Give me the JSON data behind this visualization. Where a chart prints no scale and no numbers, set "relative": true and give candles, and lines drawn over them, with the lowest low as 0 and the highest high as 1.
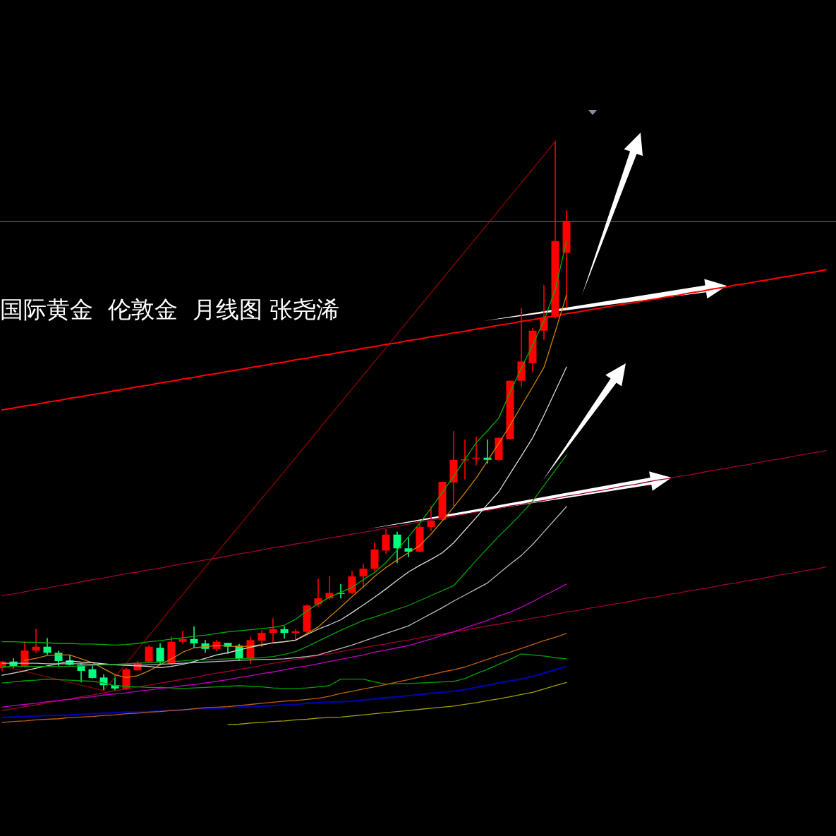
{
  "chart_data": {
    "type": "candlestick",
    "relative": true,
    "title": "国际黄金  伦敦金  月线图 张尧浠",
    "categories": [
      null,
      null,
      null,
      null,
      null,
      null,
      null,
      null,
      null,
      null,
      null,
      null,
      null,
      null,
      null,
      null,
      null,
      null,
      null,
      null,
      null,
      null,
      null,
      null,
      null,
      null,
      null,
      null,
      null,
      null,
      null,
      null,
      null,
      null,
      null,
      null,
      null,
      null,
      null,
      null,
      null,
      null,
      null,
      null,
      null,
      null,
      null,
      null,
      null,
      null,
      null,
      null,
      null,
      null,
      null,
      null,
      null,
      null,
      null,
      null,
      null,
      null,
      null,
      null,
      null,
      null,
      null,
      null,
      null,
      null,
      null,
      null,
      null,
      null
    ],
    "ohlc": [
      [
        0.041,
        0.054,
        0.035,
        0.053
      ],
      [
        0.053,
        0.059,
        0.041,
        0.045
      ],
      [
        0.045,
        0.09,
        0.042,
        0.073
      ],
      [
        0.073,
        0.113,
        0.069,
        0.08
      ],
      [
        0.08,
        0.096,
        0.065,
        0.069
      ],
      [
        0.069,
        0.073,
        0.044,
        0.054
      ],
      [
        0.055,
        0.065,
        0.046,
        0.047
      ],
      [
        0.047,
        0.05,
        0.015,
        0.036
      ],
      [
        0.039,
        0.046,
        0.022,
        0.023
      ],
      [
        0.024,
        0.03,
        0.0,
        0.01
      ],
      [
        0.01,
        0.028,
        0.0,
        0.004
      ],
      [
        0.003,
        0.041,
        0.001,
        0.039
      ],
      [
        0.037,
        0.054,
        0.036,
        0.051
      ],
      [
        0.053,
        0.083,
        0.05,
        0.08
      ],
      [
        0.078,
        0.086,
        0.047,
        0.053
      ],
      [
        0.049,
        0.099,
        0.046,
        0.089
      ],
      [
        0.089,
        0.109,
        0.085,
        0.094
      ],
      [
        0.094,
        0.117,
        0.078,
        0.086
      ],
      [
        0.086,
        0.092,
        0.069,
        0.076
      ],
      [
        0.076,
        0.092,
        0.072,
        0.089
      ],
      [
        0.087,
        0.087,
        0.067,
        0.08
      ],
      [
        0.082,
        0.085,
        0.055,
        0.058
      ],
      [
        0.058,
        0.098,
        0.049,
        0.092
      ],
      [
        0.091,
        0.11,
        0.08,
        0.105
      ],
      [
        0.105,
        0.132,
        0.089,
        0.112
      ],
      [
        0.112,
        0.117,
        0.095,
        0.105
      ],
      [
        0.105,
        0.112,
        0.092,
        0.108
      ],
      [
        0.107,
        0.157,
        0.105,
        0.155
      ],
      [
        0.157,
        0.204,
        0.153,
        0.168
      ],
      [
        0.168,
        0.209,
        0.166,
        0.178
      ],
      [
        0.178,
        0.194,
        0.168,
        0.177
      ],
      [
        0.178,
        0.218,
        0.176,
        0.208
      ],
      [
        0.208,
        0.231,
        0.187,
        0.222
      ],
      [
        0.222,
        0.27,
        0.217,
        0.257
      ],
      [
        0.255,
        0.294,
        0.249,
        0.284
      ],
      [
        0.284,
        0.289,
        0.232,
        0.259
      ],
      [
        0.259,
        0.279,
        0.243,
        0.253
      ],
      [
        0.253,
        0.303,
        0.252,
        0.298
      ],
      [
        0.298,
        0.336,
        0.29,
        0.309
      ],
      [
        0.311,
        0.38,
        0.309,
        0.38
      ],
      [
        0.379,
        0.472,
        0.336,
        0.42
      ],
      [
        0.42,
        0.457,
        0.384,
        0.421
      ],
      [
        0.422,
        0.462,
        0.41,
        0.424
      ],
      [
        0.424,
        0.457,
        0.413,
        0.42
      ],
      [
        0.42,
        0.461,
        0.418,
        0.46
      ],
      [
        0.458,
        0.564,
        0.457,
        0.564
      ],
      [
        0.564,
        0.696,
        0.553,
        0.599
      ],
      [
        0.596,
        0.66,
        0.58,
        0.655
      ],
      [
        0.655,
        0.738,
        0.638,
        0.679
      ],
      [
        0.68,
        1.0,
        0.677,
        0.818
      ],
      [
        0.797,
        0.874,
        0.696,
        0.855
      ],
      null,
      null,
      null,
      null,
      null,
      null,
      null,
      null,
      null,
      null,
      null,
      null,
      null,
      null,
      null,
      null,
      null,
      null,
      null,
      null,
      null,
      null,
      null
    ],
    "colors": [
      "#ff0000",
      "#00ff80",
      "#ff0000",
      "#ff0000",
      "#00ff80",
      "#00ff80",
      "#00ff80",
      "#00ff80",
      "#00ff80",
      "#00ff80",
      "#00ff80",
      "#ff0000",
      "#ff0000",
      "#ff0000",
      "#00ff80",
      "#ff0000",
      "#ff0000",
      "#00ff80",
      "#00ff80",
      "#ff0000",
      "#00ff80",
      "#00ff80",
      "#ff0000",
      "#ff0000",
      "#ff0000",
      "#00ff80",
      "#ff0000",
      "#ff0000",
      "#ff0000",
      "#ff0000",
      "#00ff80",
      "#ff0000",
      "#ff0000",
      "#ff0000",
      "#ff0000",
      "#00ff80",
      "#00ff80",
      "#ff0000",
      "#ff0000",
      "#ff0000",
      "#ff0000",
      "#ff0000",
      "#ff0000",
      "#00ff80",
      "#ff0000",
      "#ff0000",
      "#ff0000",
      "#ff0000",
      "#ff0000",
      "#ff0000",
      "#ff0000",
      null,
      null,
      null,
      null,
      null,
      null,
      null,
      null,
      null,
      null,
      null,
      null,
      null,
      null,
      null,
      null,
      null,
      null,
      null,
      null,
      null,
      null,
      null
    ],
    "series": [
      {
        "type": "line",
        "color": "#8b0000",
        "values": [
          0.045,
          0.04,
          0.035,
          0.03,
          0.025,
          0.02,
          0.015,
          0.01,
          0.005,
          0.0,
          0.025,
          0.05,
          0.075,
          0.1,
          0.125,
          0.15,
          0.175,
          0.2,
          0.225,
          0.25,
          0.275,
          0.3,
          0.325,
          0.35,
          0.374,
          0.399,
          0.424,
          0.449,
          0.474,
          0.499,
          0.524,
          0.549,
          0.574,
          0.599,
          0.624,
          0.649,
          0.674,
          0.699,
          0.724,
          0.749,
          0.774,
          0.799,
          0.824,
          0.849,
          0.874,
          0.899,
          0.924,
          0.949,
          0.974,
          1.0,
          null,
          null,
          null,
          null,
          null,
          null,
          null,
          null,
          null,
          null,
          null,
          null,
          null,
          null,
          null,
          null,
          null,
          null,
          null,
          null,
          null,
          null,
          null,
          null
        ]
      },
      {
        "type": "line",
        "color": "#ff0000",
        "values": [
          0.511,
          0.514,
          0.518,
          0.521,
          0.525,
          0.528,
          0.532,
          0.535,
          0.539,
          0.542,
          0.546,
          0.549,
          0.553,
          0.556,
          0.56,
          0.563,
          0.567,
          0.57,
          0.574,
          0.577,
          0.581,
          0.584,
          0.588,
          0.591,
          0.595,
          0.598,
          0.602,
          0.605,
          0.609,
          0.612,
          0.616,
          0.619,
          0.623,
          0.626,
          0.63,
          0.633,
          0.637,
          0.64,
          0.644,
          0.647,
          0.651,
          0.654,
          0.658,
          0.661,
          0.665,
          0.668,
          0.672,
          0.675,
          0.679,
          0.682,
          0.686,
          0.689,
          0.693,
          0.696,
          0.7,
          0.703,
          0.706,
          0.71,
          0.713,
          0.717,
          0.72,
          0.724,
          0.727,
          0.731,
          0.734,
          0.738,
          0.741,
          0.745,
          0.748,
          0.752,
          0.755,
          0.759,
          0.762,
          0.766
        ]
      },
      {
        "type": "line",
        "color": "#a00030",
        "values": [
          0.173,
          0.176,
          0.18,
          0.184,
          0.187,
          0.191,
          0.194,
          0.198,
          0.202,
          0.205,
          0.209,
          0.213,
          0.216,
          0.22,
          0.223,
          0.227,
          0.231,
          0.234,
          0.238,
          0.241,
          0.245,
          0.249,
          0.252,
          0.256,
          0.26,
          0.263,
          0.267,
          0.27,
          0.274,
          0.278,
          0.281,
          0.285,
          0.288,
          0.292,
          0.296,
          0.299,
          0.303,
          0.307,
          0.31,
          0.314,
          0.317,
          0.321,
          0.325,
          0.328,
          0.332,
          0.336,
          0.339,
          0.343,
          0.346,
          0.35,
          0.354,
          0.357,
          0.361,
          0.364,
          0.368,
          0.372,
          0.375,
          0.379,
          0.383,
          0.386,
          0.39,
          0.393,
          0.397,
          0.401,
          0.404,
          0.408,
          0.411,
          0.415,
          0.419,
          0.422,
          0.426,
          0.43,
          0.433,
          0.437
        ]
      },
      {
        "type": "line",
        "color": "#a00030",
        "values": [
          -0.036,
          -0.033,
          -0.029,
          -0.026,
          -0.022,
          -0.018,
          -0.015,
          -0.011,
          -0.008,
          -0.004,
          0.0,
          0.003,
          0.007,
          0.01,
          0.014,
          0.017,
          0.021,
          0.024,
          0.028,
          0.032,
          0.035,
          0.039,
          0.042,
          0.046,
          0.05,
          0.053,
          0.057,
          0.06,
          0.064,
          0.067,
          0.071,
          0.075,
          0.078,
          0.082,
          0.085,
          0.089,
          0.092,
          0.096,
          0.1,
          0.103,
          0.107,
          0.11,
          0.114,
          0.118,
          0.121,
          0.125,
          0.128,
          0.132,
          0.135,
          0.139,
          0.143,
          0.146,
          0.15,
          0.153,
          0.157,
          0.16,
          0.164,
          0.168,
          0.171,
          0.175,
          0.178,
          0.182,
          0.185,
          0.189,
          0.193,
          0.196,
          0.2,
          0.203,
          0.207,
          0.211,
          0.214,
          0.218,
          0.221,
          0.225
        ]
      },
      {
        "type": "line",
        "color": "#00b000",
        "values": [
          0.089,
          0.089,
          0.088,
          0.088,
          0.087,
          0.086,
          0.086,
          0.085,
          0.085,
          0.084,
          0.083,
          0.084,
          0.086,
          0.089,
          0.091,
          0.094,
          0.096,
          0.099,
          0.101,
          0.104,
          0.107,
          0.109,
          0.111,
          0.113,
          0.115,
          0.119,
          0.13,
          0.145,
          0.158,
          0.17,
          0.179,
          0.188,
          0.202,
          0.215,
          0.233,
          0.256,
          0.28,
          0.305,
          0.332,
          0.361,
          0.39,
          0.421,
          0.451,
          0.473,
          0.496,
          0.543,
          0.587,
          0.629,
          0.673,
          0.73,
          0.818,
          null,
          null,
          null,
          null,
          null,
          null,
          null,
          null,
          null,
          null,
          null,
          null,
          null,
          null,
          null,
          null,
          null,
          null,
          null,
          null,
          null,
          null,
          null
        ]
      },
      {
        "type": "line",
        "color": "#d08000",
        "values": [
          null,
          null,
          0.055,
          0.059,
          0.064,
          0.065,
          0.065,
          0.058,
          0.051,
          0.04,
          0.029,
          0.024,
          0.027,
          0.036,
          0.047,
          0.058,
          0.07,
          0.078,
          0.08,
          0.082,
          0.081,
          0.08,
          0.081,
          0.084,
          0.087,
          0.089,
          0.092,
          0.104,
          0.116,
          0.134,
          0.152,
          0.171,
          0.189,
          0.208,
          0.224,
          0.238,
          0.251,
          0.264,
          0.285,
          0.309,
          0.334,
          0.36,
          0.387,
          0.418,
          0.45,
          0.483,
          0.518,
          0.553,
          0.588,
          0.653,
          0.72,
          null,
          null,
          null,
          null,
          null,
          null,
          null,
          null,
          null,
          null,
          null,
          null,
          null,
          null,
          null,
          null,
          null,
          null,
          null,
          null,
          null,
          null,
          null
        ]
      },
      {
        "type": "line",
        "color": "#d8d8d8",
        "values": [
          0.028,
          0.032,
          0.036,
          0.041,
          0.045,
          0.049,
          0.054,
          0.052,
          0.051,
          0.049,
          0.047,
          0.046,
          0.045,
          0.044,
          0.042,
          0.044,
          0.048,
          0.053,
          0.059,
          0.065,
          0.069,
          0.074,
          0.079,
          0.083,
          0.087,
          0.089,
          0.092,
          0.102,
          0.112,
          0.12,
          0.129,
          0.142,
          0.156,
          0.17,
          0.185,
          0.201,
          0.216,
          0.228,
          0.239,
          0.251,
          0.269,
          0.292,
          0.315,
          0.339,
          0.362,
          0.395,
          0.427,
          0.46,
          0.501,
          0.545,
          0.589,
          null,
          null,
          null,
          null,
          null,
          null,
          null,
          null,
          null,
          null,
          null,
          null,
          null,
          null,
          null,
          null,
          null,
          null,
          null,
          null,
          null,
          null,
          null
        ]
      },
      {
        "type": "line",
        "color": "#b8b8b8",
        "values": [
          0.05,
          0.05,
          0.05,
          0.05,
          0.049,
          0.049,
          0.049,
          0.049,
          0.048,
          0.048,
          0.047,
          0.047,
          0.046,
          0.047,
          0.048,
          0.049,
          0.05,
          0.051,
          0.052,
          0.053,
          0.054,
          0.055,
          0.056,
          0.057,
          0.057,
          0.058,
          0.06,
          0.062,
          0.065,
          0.071,
          0.077,
          0.083,
          0.09,
          0.097,
          0.104,
          0.111,
          0.118,
          0.129,
          0.14,
          0.151,
          0.163,
          0.174,
          0.185,
          0.196,
          0.213,
          0.23,
          0.246,
          0.266,
          0.289,
          0.312,
          0.335,
          null,
          null,
          null,
          null,
          null,
          null,
          null,
          null,
          null,
          null,
          null,
          null,
          null,
          null,
          null,
          null,
          null,
          null,
          null,
          null,
          null,
          null,
          null
        ]
      },
      {
        "type": "line",
        "color": "#00a000",
        "values": [
          0.044,
          0.044,
          0.044,
          0.044,
          0.044,
          0.044,
          0.044,
          0.045,
          0.046,
          0.047,
          0.048,
          0.049,
          0.05,
          0.051,
          0.052,
          0.053,
          0.054,
          0.056,
          0.056,
          0.057,
          0.058,
          0.058,
          0.059,
          0.06,
          0.062,
          0.066,
          0.071,
          0.08,
          0.09,
          0.1,
          0.11,
          0.119,
          0.128,
          0.134,
          0.141,
          0.148,
          0.155,
          0.164,
          0.173,
          0.182,
          0.191,
          0.214,
          0.237,
          0.259,
          0.281,
          0.301,
          0.322,
          0.345,
          0.373,
          0.401,
          0.429,
          null,
          null,
          null,
          null,
          null,
          null,
          null,
          null,
          null,
          null,
          null,
          null,
          null,
          null,
          null,
          null,
          null,
          null,
          null,
          null,
          null,
          null,
          null
        ]
      },
      {
        "type": "line",
        "color": "#00a000",
        "values": [
          0.014,
          0.016,
          0.018,
          0.019,
          0.021,
          0.02,
          0.019,
          0.018,
          0.017,
          0.014,
          0.009,
          0.008,
          0.007,
          0.006,
          0.006,
          0.005,
          0.004,
          0.005,
          0.006,
          0.007,
          0.008,
          0.009,
          0.008,
          0.007,
          0.005,
          0.004,
          0.004,
          0.005,
          0.007,
          0.009,
          0.021,
          0.021,
          0.021,
          0.016,
          0.012,
          0.013,
          0.013,
          0.014,
          0.015,
          0.016,
          0.017,
          0.022,
          0.031,
          0.039,
          0.048,
          0.057,
          0.067,
          0.065,
          0.063,
          0.06,
          0.058,
          null,
          null,
          null,
          null,
          null,
          null,
          null,
          null,
          null,
          null,
          null,
          null,
          null,
          null,
          null,
          null,
          null,
          null,
          null,
          null,
          null,
          null,
          null
        ]
      },
      {
        "type": "line",
        "color": "#c000c0",
        "values": [
          -0.03,
          -0.027,
          -0.025,
          -0.023,
          -0.02,
          -0.018,
          -0.016,
          -0.013,
          -0.011,
          -0.008,
          -0.006,
          -0.004,
          -0.001,
          0.001,
          0.004,
          0.006,
          0.009,
          0.011,
          0.014,
          0.017,
          0.02,
          0.024,
          0.027,
          0.031,
          0.034,
          0.038,
          0.042,
          0.045,
          0.049,
          0.053,
          0.057,
          0.061,
          0.065,
          0.07,
          0.074,
          0.078,
          0.082,
          0.088,
          0.094,
          0.101,
          0.107,
          0.114,
          0.121,
          0.128,
          0.136,
          0.143,
          0.152,
          0.162,
          0.173,
          0.183,
          0.194,
          null,
          null,
          null,
          null,
          null,
          null,
          null,
          null,
          null,
          null,
          null,
          null,
          null,
          null,
          null,
          null,
          null,
          null,
          null,
          null,
          null,
          null,
          null
        ]
      },
      {
        "type": "line",
        "color": "#0000b0",
        "values": [
          -0.049,
          -0.048,
          -0.047,
          -0.046,
          -0.045,
          -0.045,
          -0.044,
          -0.043,
          -0.042,
          -0.041,
          -0.04,
          -0.039,
          -0.039,
          -0.038,
          -0.037,
          -0.036,
          -0.035,
          -0.034,
          -0.033,
          -0.033,
          -0.031,
          -0.03,
          -0.029,
          -0.028,
          -0.027,
          -0.026,
          -0.025,
          -0.023,
          -0.022,
          -0.021,
          -0.02,
          -0.019,
          -0.017,
          -0.015,
          -0.013,
          -0.011,
          -0.009,
          -0.007,
          -0.005,
          -0.003,
          -0.001,
          0.002,
          0.006,
          0.01,
          0.014,
          0.018,
          0.021,
          0.026,
          0.032,
          0.038,
          0.044,
          null,
          null,
          null,
          null,
          null,
          null,
          null,
          null,
          null,
          null,
          null,
          null,
          null,
          null,
          null,
          null,
          null,
          null,
          null,
          null,
          null,
          null,
          null
        ]
      },
      {
        "type": "line",
        "color": "#c06010",
        "values": [
          -0.058,
          -0.056,
          -0.055,
          -0.053,
          -0.052,
          -0.051,
          -0.049,
          -0.048,
          -0.047,
          -0.045,
          -0.044,
          -0.042,
          -0.041,
          -0.039,
          -0.038,
          -0.036,
          -0.035,
          -0.033,
          -0.031,
          -0.03,
          -0.029,
          -0.027,
          -0.025,
          -0.023,
          -0.021,
          -0.019,
          -0.018,
          -0.016,
          -0.014,
          -0.01,
          -0.005,
          -0.001,
          0.003,
          0.007,
          0.011,
          0.016,
          0.02,
          0.025,
          0.029,
          0.034,
          0.038,
          0.043,
          0.05,
          0.057,
          0.064,
          0.07,
          0.077,
          0.084,
          0.091,
          0.097,
          0.104,
          null,
          null,
          null,
          null,
          null,
          null,
          null,
          null,
          null,
          null,
          null,
          null,
          null,
          null,
          null,
          null,
          null,
          null,
          null,
          null,
          null,
          null,
          null
        ]
      },
      {
        "type": "line",
        "color": "#a0a000",
        "values": [
          null,
          null,
          null,
          null,
          null,
          null,
          null,
          null,
          null,
          null,
          null,
          null,
          null,
          null,
          null,
          null,
          null,
          null,
          null,
          null,
          -0.062,
          -0.061,
          -0.059,
          -0.058,
          -0.056,
          -0.055,
          -0.053,
          -0.052,
          -0.05,
          -0.049,
          -0.048,
          -0.046,
          -0.044,
          -0.042,
          -0.04,
          -0.038,
          -0.036,
          -0.034,
          -0.032,
          -0.03,
          -0.028,
          -0.025,
          -0.022,
          -0.018,
          -0.015,
          -0.011,
          -0.007,
          -0.003,
          0.003,
          0.009,
          0.015,
          null,
          null,
          null,
          null,
          null,
          null,
          null,
          null,
          null,
          null,
          null,
          null,
          null,
          null,
          null,
          null,
          null,
          null,
          null,
          null,
          null,
          null,
          null
        ]
      }
    ],
    "ref_lines": [
      {
        "axis": "y",
        "value": 0.854,
        "color": "#6b7b8c"
      }
    ]
  }
}
